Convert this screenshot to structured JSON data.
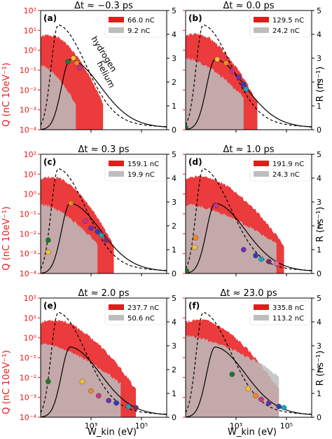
{
  "figure": {
    "shared_left_axis_label": "Q (nC 10eV⁻¹)",
    "shared_right_axis_label": "R (ns⁻¹)",
    "shared_x_axis_label": "W_kin (eV)",
    "left_axis_color": "#e8191b",
    "hist_hydrogen_color": "#e8191b",
    "hist_helium_color": "#bdbdbd"
  },
  "chart_data": [
    {
      "type": "area",
      "panel_label": "(a)",
      "title": "Δt ≈ −0.3 ps",
      "legend": [
        "66.0 nC",
        "9.2 nC"
      ],
      "legend_position": "top-right",
      "annotations": [
        "hydrogen",
        "helium"
      ],
      "x_scale": "log",
      "xlim": [
        10,
        1000000
      ],
      "y_scale": "log",
      "ylim": [
        0.0001,
        100
      ],
      "y2lim": [
        0,
        5
      ],
      "x_ticks": [],
      "y_ticks": [
        "10⁻⁴",
        "10⁻³",
        "10⁻²",
        "10⁻¹",
        "10⁰",
        "10¹",
        "10²"
      ],
      "y2_ticks": [
        "0",
        "1",
        "2",
        "3",
        "4",
        "5"
      ],
      "hydrogen_hist": {
        "Wmax": 3000,
        "height": 8,
        "peak_at": 70
      },
      "helium_hist": {
        "Wmax": 250,
        "height": 0.18
      },
      "dots": [
        [
          120,
          2.85
        ],
        [
          200,
          3.0
        ],
        [
          270,
          2.8
        ],
        [
          360,
          2.6
        ]
      ]
    },
    {
      "type": "area",
      "panel_label": "(b)",
      "title": "Δt ≈ 0.0 ps",
      "legend": [
        "129.5 nC",
        "24.2 nC"
      ],
      "legend_position": "top-right",
      "x_scale": "log",
      "xlim": [
        10,
        1000000
      ],
      "y_scale": "log",
      "ylim": [
        0.0001,
        100
      ],
      "y2lim": [
        0,
        5
      ],
      "x_ticks": [],
      "y_ticks": [],
      "y2_ticks": [
        "0",
        "1",
        "2",
        "3",
        "4",
        "5"
      ],
      "hydrogen_hist": {
        "Wmax": 7000,
        "height": 9,
        "peak_at": 80
      },
      "helium_hist": {
        "Wmax": 2000,
        "height": 0.4
      },
      "dots": [
        [
          10,
          0.1
        ],
        [
          180,
          2.95
        ],
        [
          400,
          2.8
        ],
        [
          700,
          2.45
        ],
        [
          1300,
          2.2
        ],
        [
          2000,
          1.9
        ],
        [
          2500,
          1.7
        ]
      ]
    },
    {
      "type": "area",
      "panel_label": "(c)",
      "title": "Δt ≈ 0.3 ps",
      "legend": [
        "159.1 nC",
        "19.9 nC"
      ],
      "legend_position": "top-right",
      "x_scale": "log",
      "xlim": [
        10,
        1000000
      ],
      "y_scale": "log",
      "ylim": [
        0.0001,
        100
      ],
      "y2lim": [
        0,
        5
      ],
      "x_ticks": [],
      "y_ticks": [
        "10⁻⁴",
        "10⁻³",
        "10⁻²",
        "10⁻¹",
        "10⁰",
        "10¹",
        "10²"
      ],
      "y2_ticks": [
        "0",
        "1",
        "2",
        "3",
        "4",
        "5"
      ],
      "hydrogen_hist": {
        "Wmax": 8000,
        "height": 10,
        "peak_at": 80
      },
      "helium_hist": {
        "Wmax": 1800,
        "height": 0.3
      },
      "dots": [
        [
          20,
          1.4
        ],
        [
          20,
          0.9
        ],
        [
          160,
          2.95
        ],
        [
          600,
          2.2
        ],
        [
          1000,
          1.9
        ],
        [
          1800,
          1.75
        ],
        [
          2600,
          1.6
        ],
        [
          4000,
          1.4
        ]
      ]
    },
    {
      "type": "area",
      "panel_label": "(d)",
      "title": "Δt ≈ 1.0 ps",
      "legend": [
        "191.9 nC",
        "24.3 nC"
      ],
      "legend_position": "top-right",
      "x_scale": "log",
      "xlim": [
        10,
        1000000
      ],
      "y_scale": "log",
      "ylim": [
        0.0001,
        100
      ],
      "y2lim": [
        0,
        5
      ],
      "x_ticks": [],
      "y_ticks": [],
      "y2_ticks": [
        "0",
        "1",
        "2",
        "3",
        "4",
        "5"
      ],
      "hydrogen_hist": {
        "Wmax": 80000,
        "height": 10,
        "peak_at": 80
      },
      "helium_hist": {
        "Wmax": 40000,
        "height": 0.3
      },
      "dots": [
        [
          11,
          0.1
        ],
        [
          23,
          1.1
        ],
        [
          25,
          1.5
        ],
        [
          160,
          2.85
        ],
        [
          2000,
          1.0
        ],
        [
          6000,
          0.75
        ],
        [
          10000,
          0.6
        ],
        [
          20000,
          0.5
        ],
        [
          40000,
          0.42
        ]
      ]
    },
    {
      "type": "area",
      "panel_label": "(e)",
      "title": "Δt ≈ 2.0 ps",
      "legend": [
        "237.7 nC",
        "50.6 nC"
      ],
      "legend_position": "top-right",
      "x_scale": "log",
      "xlim": [
        10,
        1000000
      ],
      "y_scale": "log",
      "ylim": [
        0.0001,
        100
      ],
      "y2lim": [
        0,
        5
      ],
      "x_ticks": [
        "10³",
        "10⁵"
      ],
      "y_ticks": [
        "10⁻⁴",
        "10⁻³",
        "10⁻²",
        "10⁻¹",
        "10⁰",
        "10¹",
        "10²"
      ],
      "y2_ticks": [
        "0",
        "1",
        "2",
        "3",
        "4",
        "5"
      ],
      "hydrogen_hist": {
        "Wmax": 60000,
        "height": 10,
        "peak_at": 80
      },
      "helium_hist": {
        "Wmax": 15000,
        "height": 0.5
      },
      "dots": [
        [
          20,
          1.5
        ],
        [
          450,
          1.5
        ],
        [
          1000,
          1.1
        ],
        [
          2000,
          0.9
        ],
        [
          5000,
          0.7
        ],
        [
          10000,
          0.6
        ],
        [
          30000,
          0.45
        ],
        [
          60000,
          0.4
        ]
      ]
    },
    {
      "type": "area",
      "panel_label": "(f)",
      "title": "Δt ≈ 23.0 ps",
      "legend": [
        "335.8 nC",
        "113.2 nC"
      ],
      "legend_position": "top-right",
      "x_scale": "log",
      "xlim": [
        10,
        1000000
      ],
      "y_scale": "log",
      "ylim": [
        0.0001,
        100
      ],
      "y2lim": [
        0,
        5
      ],
      "x_ticks": [
        "10³",
        "10⁵"
      ],
      "y_ticks": [],
      "y2_ticks": [
        "0",
        "1",
        "2",
        "3",
        "4",
        "5"
      ],
      "hydrogen_hist": {
        "Wmax": 50000,
        "height": 10,
        "peak_at": 80
      },
      "helium_hist": {
        "Wmax": 50000,
        "height": 1.2
      },
      "dots": [
        [
          700,
          1.8
        ],
        [
          3000,
          1.2
        ],
        [
          6000,
          0.9
        ],
        [
          10000,
          0.75
        ],
        [
          20000,
          0.6
        ],
        [
          50000,
          0.45
        ],
        [
          80000,
          0.4
        ]
      ]
    }
  ]
}
